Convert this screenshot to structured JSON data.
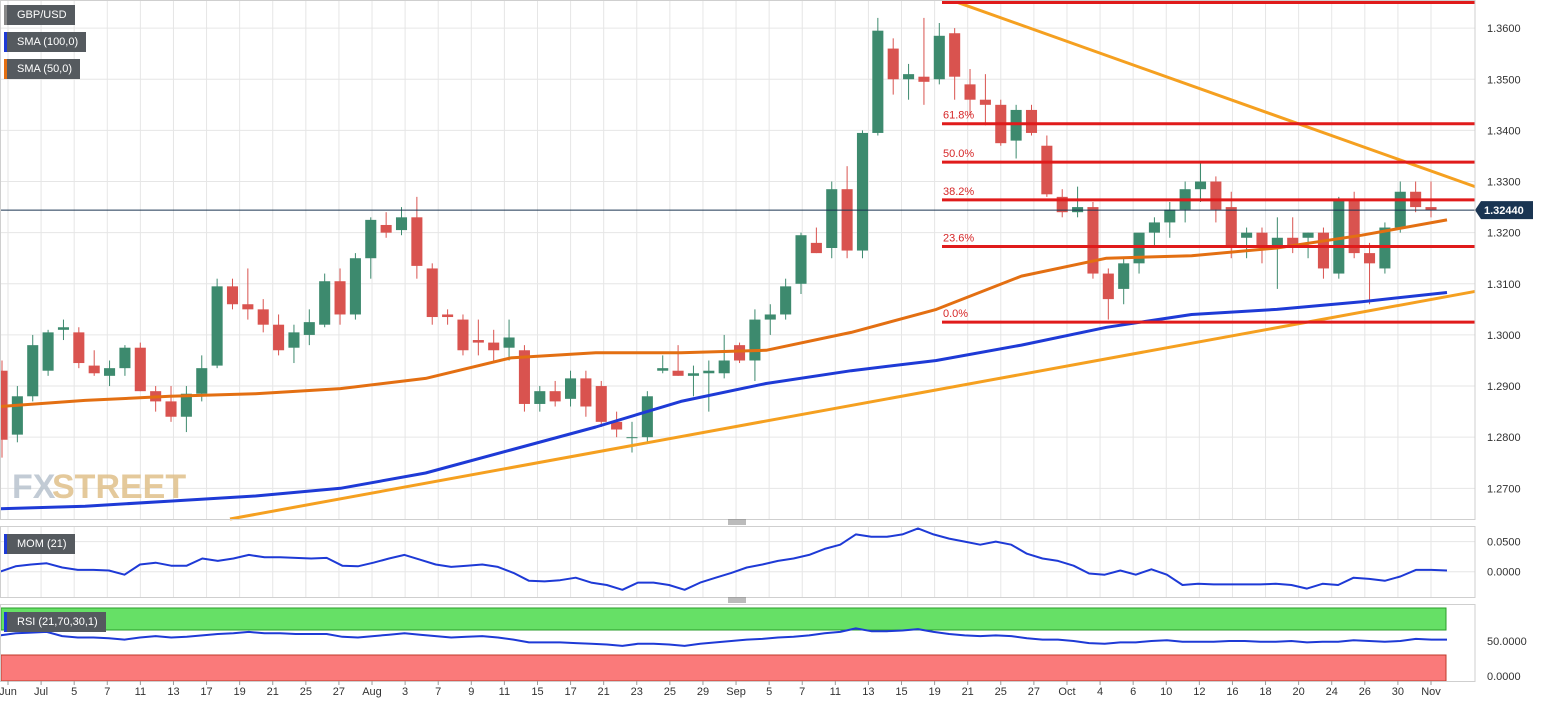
{
  "colors": {
    "bull": "#3d8a6e",
    "bear": "#d9534f",
    "sma100": "#1e3ad6",
    "sma50": "#e36f12",
    "trend": "#f5a020",
    "fib": "#e01b1b",
    "price_line": "#1a3552",
    "mom": "#1e3ad6",
    "rsi": "#1e3ad6",
    "rsi_upper": "#66e066",
    "rsi_lower": "#fa7a7a"
  },
  "labels": {
    "symbol": "GBP/USD",
    "sma100": "SMA (100,0)",
    "sma50": "SMA (50,0)",
    "mom": "MOM (21)",
    "rsi": "RSI (21,70,30,1)",
    "watermark_fx": "FX",
    "watermark_street": "STREET",
    "last_price": "1.32440"
  },
  "chart_data": {
    "type": "candlestick",
    "main": {
      "ylim": [
        1.264,
        1.3655
      ],
      "yticks": [
        "1.2700",
        "1.2800",
        "1.2900",
        "1.3000",
        "1.3100",
        "1.3200",
        "1.3300",
        "1.3400",
        "1.3500",
        "1.3600"
      ],
      "last_price": 1.3244,
      "fib_levels": [
        {
          "label": "61.8%",
          "value": 1.3413
        },
        {
          "label": "50.0%",
          "value": 1.3338
        },
        {
          "label": "38.2%",
          "value": 1.3264
        },
        {
          "label": "23.6%",
          "value": 1.3173
        },
        {
          "label": "0.0%",
          "value": 1.3025
        }
      ],
      "fib_top": 1.365,
      "candles": [
        [
          1.293,
          1.295,
          1.276,
          1.2795
        ],
        [
          1.2805,
          1.29,
          1.279,
          1.288
        ],
        [
          1.288,
          1.3,
          1.287,
          1.298
        ],
        [
          1.293,
          1.301,
          1.292,
          1.3005
        ],
        [
          1.301,
          1.303,
          1.299,
          1.3015
        ],
        [
          1.3005,
          1.3015,
          1.2935,
          1.2945
        ],
        [
          1.294,
          1.297,
          1.292,
          1.2925
        ],
        [
          1.292,
          1.295,
          1.29,
          1.2935
        ],
        [
          1.2935,
          1.298,
          1.292,
          1.2975
        ],
        [
          1.2975,
          1.2985,
          1.289,
          1.289
        ],
        [
          1.289,
          1.29,
          1.285,
          1.287
        ],
        [
          1.287,
          1.29,
          1.283,
          1.284
        ],
        [
          1.284,
          1.29,
          1.281,
          1.2885
        ],
        [
          1.2885,
          1.296,
          1.287,
          1.2935
        ],
        [
          1.294,
          1.311,
          1.2935,
          1.3095
        ],
        [
          1.3095,
          1.311,
          1.305,
          1.306
        ],
        [
          1.306,
          1.313,
          1.303,
          1.305
        ],
        [
          1.305,
          1.307,
          1.3005,
          1.302
        ],
        [
          1.302,
          1.304,
          1.296,
          1.297
        ],
        [
          1.2975,
          1.302,
          1.2945,
          1.3005
        ],
        [
          1.3,
          1.305,
          1.298,
          1.3025
        ],
        [
          1.302,
          1.312,
          1.3015,
          1.3105
        ],
        [
          1.3105,
          1.313,
          1.302,
          1.304
        ],
        [
          1.304,
          1.316,
          1.303,
          1.315
        ],
        [
          1.315,
          1.323,
          1.311,
          1.3225
        ],
        [
          1.3215,
          1.324,
          1.319,
          1.32
        ],
        [
          1.3205,
          1.325,
          1.3195,
          1.323
        ],
        [
          1.323,
          1.327,
          1.311,
          1.3135
        ],
        [
          1.313,
          1.314,
          1.302,
          1.3035
        ],
        [
          1.304,
          1.305,
          1.302,
          1.3035
        ],
        [
          1.303,
          1.304,
          1.296,
          1.297
        ],
        [
          1.299,
          1.303,
          1.296,
          1.2985
        ],
        [
          1.2985,
          1.301,
          1.295,
          1.297
        ],
        [
          1.2975,
          1.303,
          1.295,
          1.2995
        ],
        [
          1.297,
          1.298,
          1.285,
          1.2865
        ],
        [
          1.2865,
          1.29,
          1.285,
          1.289
        ],
        [
          1.289,
          1.291,
          1.286,
          1.287
        ],
        [
          1.2875,
          1.293,
          1.286,
          1.2915
        ],
        [
          1.2915,
          1.293,
          1.284,
          1.286
        ],
        [
          1.29,
          1.291,
          1.282,
          1.283
        ],
        [
          1.283,
          1.285,
          1.28,
          1.2815
        ],
        [
          1.28,
          1.283,
          1.277,
          1.28
        ],
        [
          1.28,
          1.289,
          1.279,
          1.288
        ],
        [
          1.293,
          1.296,
          1.2925,
          1.2935
        ],
        [
          1.293,
          1.298,
          1.292,
          1.292
        ],
        [
          1.292,
          1.294,
          1.288,
          1.2925
        ],
        [
          1.2925,
          1.295,
          1.285,
          1.293
        ],
        [
          1.2925,
          1.3,
          1.2915,
          1.295
        ],
        [
          1.298,
          1.2985,
          1.2945,
          1.295
        ],
        [
          1.295,
          1.305,
          1.291,
          1.303
        ],
        [
          1.303,
          1.306,
          1.3,
          1.304
        ],
        [
          1.304,
          1.311,
          1.303,
          1.3095
        ],
        [
          1.31,
          1.32,
          1.308,
          1.3195
        ],
        [
          1.318,
          1.321,
          1.316,
          1.316
        ],
        [
          1.317,
          1.33,
          1.315,
          1.3285
        ],
        [
          1.3285,
          1.333,
          1.315,
          1.3165
        ],
        [
          1.3165,
          1.34,
          1.315,
          1.3395
        ],
        [
          1.3395,
          1.362,
          1.339,
          1.3595
        ],
        [
          1.356,
          1.358,
          1.347,
          1.35
        ],
        [
          1.35,
          1.353,
          1.346,
          1.351
        ],
        [
          1.3505,
          1.362,
          1.345,
          1.3495
        ],
        [
          1.35,
          1.361,
          1.349,
          1.3585
        ],
        [
          1.359,
          1.36,
          1.346,
          1.3505
        ],
        [
          1.349,
          1.352,
          1.343,
          1.346
        ],
        [
          1.346,
          1.351,
          1.341,
          1.345
        ],
        [
          1.345,
          1.346,
          1.337,
          1.3375
        ],
        [
          1.338,
          1.345,
          1.3345,
          1.344
        ],
        [
          1.344,
          1.345,
          1.339,
          1.3395
        ],
        [
          1.337,
          1.339,
          1.327,
          1.3275
        ],
        [
          1.327,
          1.3285,
          1.323,
          1.324
        ],
        [
          1.324,
          1.329,
          1.323,
          1.325
        ],
        [
          1.325,
          1.326,
          1.311,
          1.312
        ],
        [
          1.312,
          1.313,
          1.303,
          1.307
        ],
        [
          1.309,
          1.315,
          1.306,
          1.314
        ],
        [
          1.314,
          1.319,
          1.312,
          1.32
        ],
        [
          1.32,
          1.323,
          1.317,
          1.322
        ],
        [
          1.322,
          1.326,
          1.319,
          1.3245
        ],
        [
          1.3245,
          1.33,
          1.322,
          1.3285
        ],
        [
          1.3285,
          1.334,
          1.326,
          1.33
        ],
        [
          1.33,
          1.331,
          1.322,
          1.3245
        ],
        [
          1.325,
          1.328,
          1.315,
          1.317
        ],
        [
          1.319,
          1.321,
          1.315,
          1.32
        ],
        [
          1.32,
          1.321,
          1.314,
          1.317
        ],
        [
          1.317,
          1.323,
          1.309,
          1.319
        ],
        [
          1.319,
          1.323,
          1.316,
          1.317
        ],
        [
          1.319,
          1.32,
          1.315,
          1.32
        ],
        [
          1.32,
          1.321,
          1.311,
          1.313
        ],
        [
          1.312,
          1.327,
          1.311,
          1.3265
        ],
        [
          1.3265,
          1.328,
          1.315,
          1.316
        ],
        [
          1.316,
          1.318,
          1.306,
          1.314
        ],
        [
          1.313,
          1.322,
          1.312,
          1.321
        ],
        [
          1.321,
          1.33,
          1.32,
          1.328
        ],
        [
          1.328,
          1.33,
          1.324,
          1.325
        ],
        [
          1.325,
          1.33,
          1.323,
          1.3244
        ]
      ],
      "sma100": [
        1.266,
        1.2665,
        1.2675,
        1.2685,
        1.27,
        1.273,
        1.2775,
        1.282,
        1.287,
        1.2905,
        1.293,
        1.295,
        1.298,
        1.3015,
        1.304,
        1.305,
        1.3065,
        1.3083
      ],
      "sma50": [
        1.286,
        1.2872,
        1.288,
        1.2885,
        1.2895,
        1.2915,
        1.2955,
        1.2965,
        1.2965,
        1.297,
        1.3005,
        1.305,
        1.3115,
        1.315,
        1.3155,
        1.317,
        1.3195,
        1.3225
      ],
      "trend_down": [
        [
          1.365,
          1.329
        ]
      ],
      "trend_up": [
        [
          1.264,
          1.3085
        ]
      ]
    },
    "x_ticks": [
      "Jun",
      "Jul",
      "5",
      "7",
      "11",
      "13",
      "17",
      "19",
      "21",
      "25",
      "27",
      "Aug",
      "3",
      "7",
      "9",
      "11",
      "15",
      "17",
      "21",
      "23",
      "25",
      "29",
      "Sep",
      "5",
      "7",
      "11",
      "13",
      "15",
      "19",
      "21",
      "25",
      "27",
      "Oct",
      "4",
      "6",
      "10",
      "12",
      "16",
      "18",
      "20",
      "24",
      "26",
      "30",
      "Nov"
    ],
    "mom": {
      "ylim": [
        -0.042,
        0.076
      ],
      "yticks": [
        "0.0000",
        "0.0500"
      ],
      "values": [
        0.0,
        0.009,
        0.012,
        0.014,
        0.007,
        0.003,
        0.003,
        0.002,
        -0.005,
        0.012,
        0.015,
        0.01,
        0.01,
        0.022,
        0.018,
        0.022,
        0.028,
        0.024,
        0.024,
        0.023,
        0.022,
        0.023,
        0.01,
        0.009,
        0.015,
        0.022,
        0.028,
        0.02,
        0.012,
        0.008,
        0.01,
        0.012,
        0.008,
        -0.002,
        -0.015,
        -0.016,
        -0.014,
        -0.01,
        -0.018,
        -0.022,
        -0.03,
        -0.018,
        -0.018,
        -0.022,
        -0.03,
        -0.018,
        -0.01,
        -0.002,
        0.007,
        0.012,
        0.018,
        0.022,
        0.028,
        0.038,
        0.045,
        0.062,
        0.058,
        0.058,
        0.062,
        0.072,
        0.062,
        0.055,
        0.05,
        0.045,
        0.05,
        0.045,
        0.03,
        0.022,
        0.018,
        0.01,
        -0.003,
        -0.005,
        0.002,
        -0.005,
        0.004,
        -0.005,
        -0.022,
        -0.02,
        -0.021,
        -0.021,
        -0.021,
        -0.021,
        -0.02,
        -0.022,
        -0.028,
        -0.02,
        -0.022,
        -0.01,
        -0.012,
        -0.015,
        -0.008,
        0.003,
        0.003,
        0.002
      ]
    },
    "rsi": {
      "ylim": [
        0,
        100
      ],
      "yticks": [
        "0.0000",
        "50.0000"
      ],
      "upper": 70,
      "lower": 30,
      "values": [
        58,
        61,
        62,
        63,
        57,
        55,
        55,
        54,
        52,
        55,
        57,
        55,
        56,
        58,
        60,
        61,
        63,
        61,
        61,
        60,
        60,
        60,
        56,
        55,
        57,
        59,
        61,
        59,
        57,
        55,
        56,
        57,
        55,
        52,
        48,
        48,
        48,
        47,
        46,
        45,
        43,
        46,
        46,
        45,
        43,
        46,
        48,
        50,
        52,
        53,
        55,
        56,
        58,
        61,
        63,
        68,
        64,
        64,
        65,
        67,
        63,
        60,
        58,
        57,
        58,
        57,
        54,
        52,
        52,
        50,
        47,
        46,
        48,
        48,
        50,
        51,
        49,
        49,
        49,
        50,
        50,
        49,
        49,
        50,
        48,
        49,
        49,
        51,
        50,
        49,
        50,
        53,
        52,
        52
      ]
    }
  }
}
